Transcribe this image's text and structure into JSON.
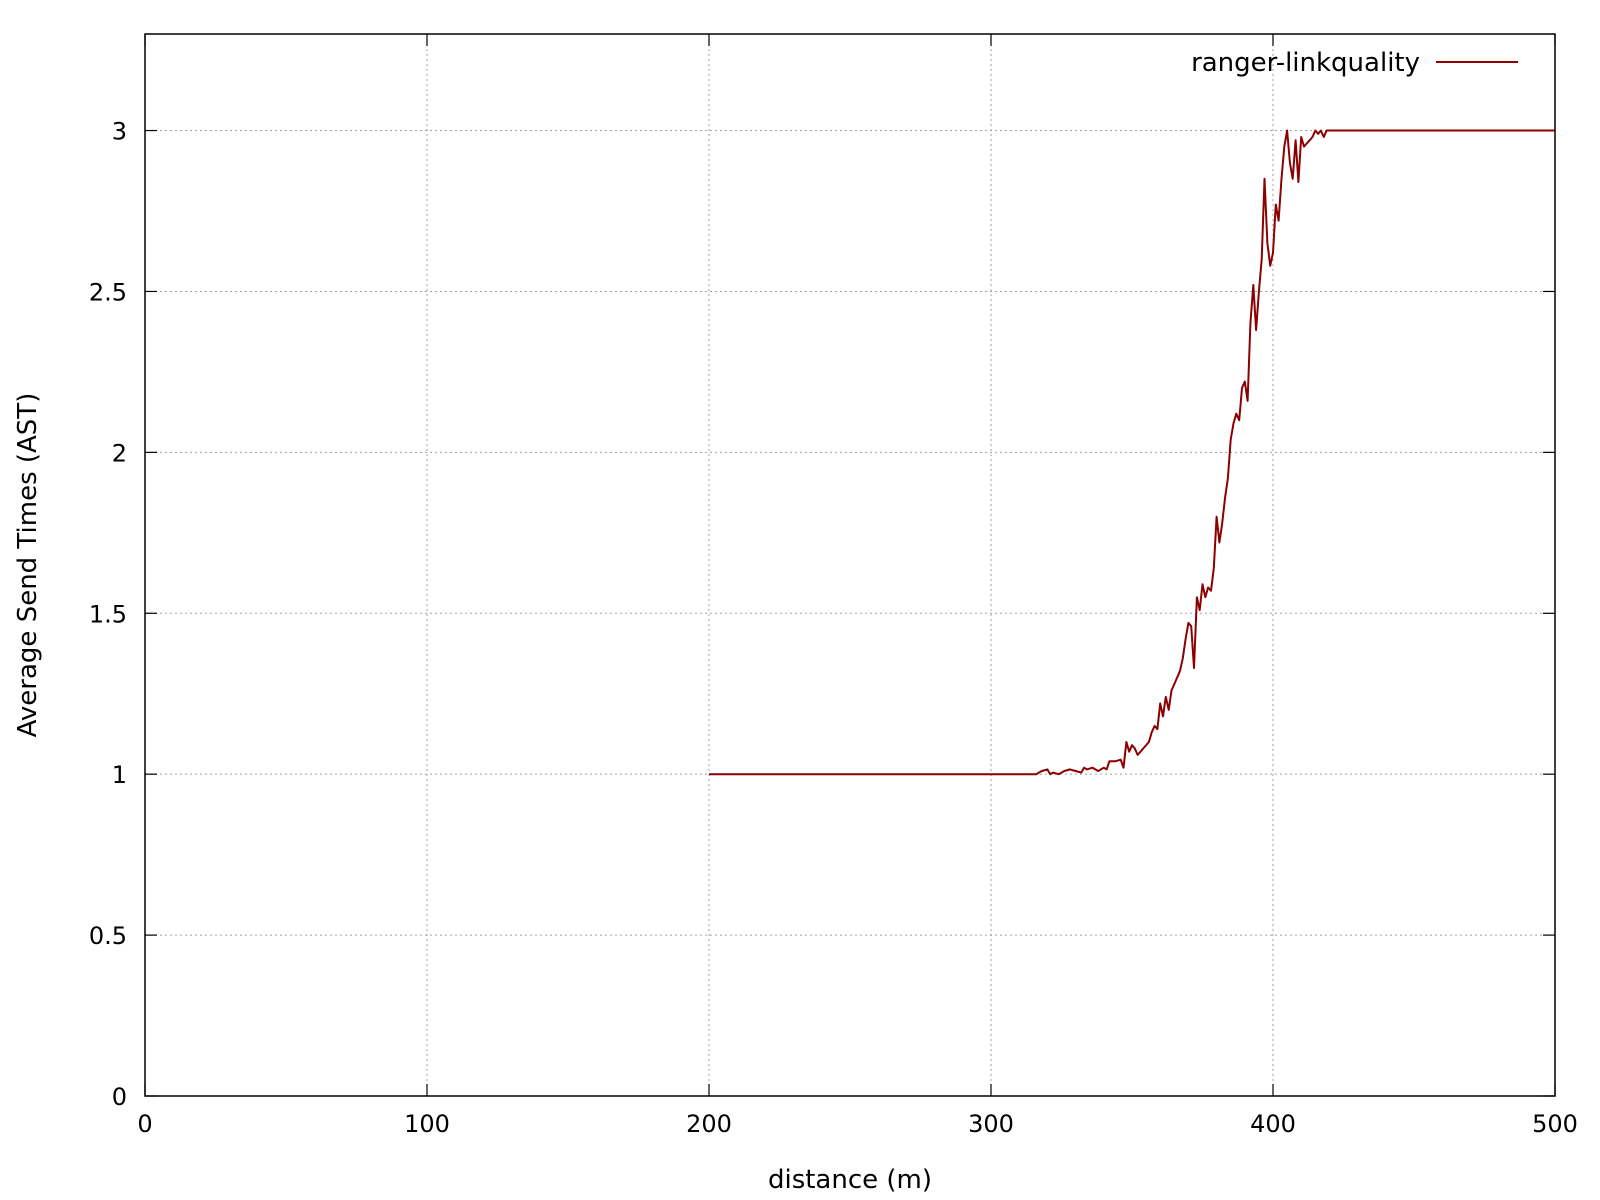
{
  "chart_data": {
    "type": "line",
    "title": "",
    "xlabel": "distance (m)",
    "ylabel": "Average Send Times (AST)",
    "xlim": [
      0,
      500
    ],
    "ylim": [
      0,
      3.3
    ],
    "xticks": [
      0,
      100,
      200,
      300,
      400,
      500
    ],
    "yticks": [
      0,
      0.5,
      1,
      1.5,
      2,
      2.5,
      3
    ],
    "xtick_labels": [
      "0",
      "100",
      "200",
      "300",
      "400",
      "500"
    ],
    "ytick_labels": [
      "0",
      "0.5",
      "1",
      "1.5",
      "2",
      "2.5",
      "3"
    ],
    "grid": true,
    "legend_position": "top-right",
    "series": [
      {
        "name": "ranger-linkquality",
        "color": "#8b0000",
        "x": [
          200,
          316,
          318,
          320,
          321,
          322,
          324,
          326,
          328,
          330,
          332,
          333,
          334,
          336,
          338,
          340,
          341,
          342,
          344,
          346,
          347,
          348,
          349,
          350,
          351,
          352,
          353,
          354,
          356,
          357,
          358,
          359,
          360,
          361,
          362,
          363,
          364,
          365,
          366,
          367,
          368,
          369,
          370,
          371,
          372,
          373,
          374,
          375,
          376,
          377,
          378,
          379,
          380,
          381,
          382,
          383,
          384,
          385,
          386,
          387,
          388,
          389,
          390,
          391,
          392,
          393,
          394,
          395,
          396,
          397,
          398,
          399,
          400,
          401,
          402,
          403,
          404,
          405,
          406,
          407,
          408,
          409,
          410,
          411,
          412,
          413,
          414,
          415,
          416,
          417,
          418,
          419,
          420,
          500
        ],
        "y": [
          1.0,
          1.0,
          1.01,
          1.015,
          1.0,
          1.005,
          1.0,
          1.01,
          1.015,
          1.01,
          1.005,
          1.02,
          1.015,
          1.02,
          1.01,
          1.02,
          1.015,
          1.04,
          1.04,
          1.045,
          1.02,
          1.1,
          1.07,
          1.09,
          1.08,
          1.06,
          1.07,
          1.08,
          1.1,
          1.13,
          1.15,
          1.14,
          1.22,
          1.18,
          1.24,
          1.2,
          1.26,
          1.28,
          1.3,
          1.32,
          1.36,
          1.42,
          1.47,
          1.46,
          1.33,
          1.55,
          1.51,
          1.59,
          1.55,
          1.58,
          1.57,
          1.64,
          1.8,
          1.72,
          1.78,
          1.86,
          1.92,
          2.04,
          2.09,
          2.12,
          2.1,
          2.2,
          2.22,
          2.16,
          2.4,
          2.52,
          2.38,
          2.5,
          2.6,
          2.85,
          2.65,
          2.58,
          2.62,
          2.77,
          2.72,
          2.85,
          2.95,
          3.0,
          2.9,
          2.85,
          2.97,
          2.84,
          2.98,
          2.95,
          2.96,
          2.97,
          2.98,
          3.0,
          2.99,
          3.0,
          2.98,
          3.0,
          3.0,
          3.0
        ]
      }
    ]
  }
}
